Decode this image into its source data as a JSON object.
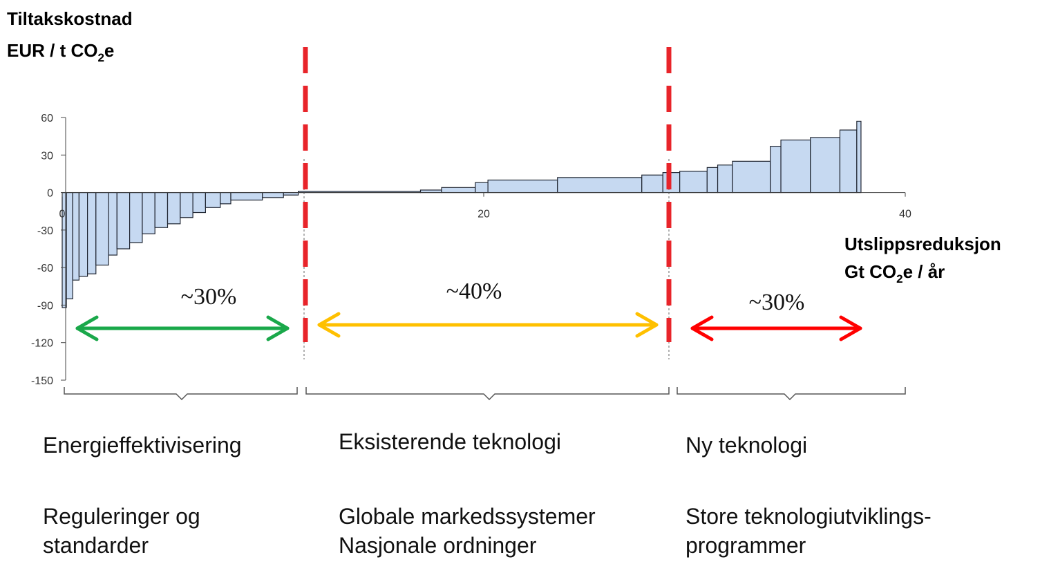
{
  "chart_data": {
    "type": "histogram",
    "y_label": {
      "line1": "Tiltakskostnad",
      "line2": [
        "EUR / t CO",
        "2",
        "e"
      ]
    },
    "x_label": {
      "line1": "Utslippsreduksjon",
      "line2": [
        "Gt CO",
        "2",
        "e / år"
      ]
    },
    "bins": [
      0,
      0.2,
      0.5,
      0.8,
      1.2,
      1.6,
      2.2,
      2.6,
      3.2,
      3.8,
      4.4,
      5.0,
      5.6,
      6.2,
      6.8,
      7.5,
      8.0,
      9.5,
      10.5,
      11.2,
      17.0,
      18.0,
      19.6,
      20.2,
      23.5,
      27.5,
      28.5,
      29.3,
      30.6,
      31.1,
      31.8,
      33.6,
      34.1,
      35.5,
      36.9,
      37.7,
      37.9
    ],
    "values": [
      -92,
      -85,
      -70,
      -67,
      -65,
      -58,
      -50,
      -45,
      -40,
      -33,
      -28,
      -25,
      -20,
      -16,
      -12,
      -9,
      -6,
      -4,
      -2,
      1,
      2,
      4,
      8,
      10,
      12,
      14,
      16,
      17,
      20,
      22,
      25,
      37,
      42,
      44,
      50,
      57
    ],
    "color": "#c6d9f1",
    "xlim": [
      0,
      40
    ],
    "xticks": [
      0,
      20,
      40
    ],
    "ylim": [
      -150,
      60
    ],
    "yticks": [
      60,
      30,
      0,
      -30,
      -60,
      -90,
      -120,
      -150
    ],
    "groups": [
      {
        "share": "~30%",
        "name": "Energieffektivisering",
        "measures": [
          "Reguleringer og",
          "standarder"
        ]
      },
      {
        "share": "~40%",
        "name": "Eksisterende teknologi",
        "measures": [
          "Globale markedssystemer",
          "Nasjonale ordninger"
        ]
      },
      {
        "share": "~30%",
        "name": "Ny teknologi",
        "measures": [
          "Store teknologiutviklings-",
          "programmer"
        ]
      }
    ]
  }
}
